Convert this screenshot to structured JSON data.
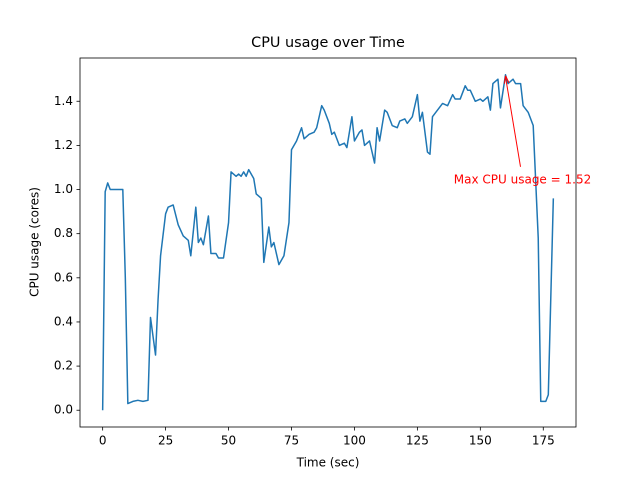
{
  "chart_data": {
    "type": "line",
    "title": "CPU usage over Time",
    "x_label": "Time (sec)",
    "y_label": "CPU usage (cores)",
    "x": [
      0,
      1,
      2,
      3,
      5,
      8,
      9,
      10,
      12,
      14,
      16,
      18,
      19,
      21,
      22,
      23,
      25,
      26,
      28,
      30,
      32,
      34,
      35,
      37,
      38,
      39,
      40,
      42,
      43,
      45,
      46,
      48,
      50,
      51,
      53,
      54,
      55,
      56,
      57,
      58,
      60,
      61,
      63,
      64,
      66,
      67,
      68,
      70,
      72,
      74,
      75,
      77,
      79,
      80,
      82,
      84,
      85,
      87,
      88,
      90,
      91,
      92,
      94,
      96,
      97,
      99,
      100,
      102,
      103,
      104,
      106,
      108,
      109,
      110,
      112,
      113,
      115,
      117,
      118,
      120,
      121,
      123,
      125,
      126,
      127,
      129,
      130,
      131,
      133,
      135,
      137,
      139,
      140,
      142,
      144,
      145,
      146,
      148,
      150,
      151,
      153,
      154,
      155,
      157,
      158,
      160,
      161,
      163,
      164,
      166,
      167,
      169,
      171,
      173,
      174,
      176,
      177,
      179
    ],
    "series": [
      {
        "name": "CPU usage",
        "color": "#1f77b4",
        "values": [
          0.0,
          0.99,
          1.03,
          1.0,
          1.0,
          1.0,
          0.6,
          0.03,
          0.04,
          0.045,
          0.04,
          0.045,
          0.42,
          0.25,
          0.5,
          0.7,
          0.89,
          0.92,
          0.93,
          0.84,
          0.79,
          0.77,
          0.7,
          0.92,
          0.76,
          0.78,
          0.75,
          0.88,
          0.71,
          0.71,
          0.69,
          0.69,
          0.85,
          1.08,
          1.06,
          1.07,
          1.06,
          1.08,
          1.06,
          1.09,
          1.05,
          0.98,
          0.96,
          0.67,
          0.83,
          0.74,
          0.76,
          0.66,
          0.7,
          0.85,
          1.18,
          1.22,
          1.28,
          1.23,
          1.25,
          1.26,
          1.28,
          1.38,
          1.36,
          1.3,
          1.25,
          1.26,
          1.2,
          1.21,
          1.19,
          1.33,
          1.22,
          1.26,
          1.27,
          1.2,
          1.22,
          1.12,
          1.28,
          1.22,
          1.36,
          1.35,
          1.29,
          1.28,
          1.31,
          1.32,
          1.3,
          1.33,
          1.43,
          1.31,
          1.35,
          1.17,
          1.16,
          1.33,
          1.36,
          1.39,
          1.38,
          1.43,
          1.41,
          1.41,
          1.47,
          1.45,
          1.45,
          1.4,
          1.41,
          1.4,
          1.42,
          1.36,
          1.48,
          1.5,
          1.37,
          1.52,
          1.48,
          1.5,
          1.48,
          1.48,
          1.38,
          1.35,
          1.29,
          0.78,
          0.04,
          0.04,
          0.07,
          0.96
        ]
      }
    ],
    "xlim": [
      -9,
      188
    ],
    "ylim": [
      -0.076,
      1.596
    ],
    "xticks": [
      0,
      25,
      50,
      75,
      100,
      125,
      150,
      175
    ],
    "yticks": [
      {
        "value": 0,
        "label": "0.0"
      },
      0.2,
      0.4,
      0.6,
      0.8,
      {
        "value": 1,
        "label": "1.0"
      },
      1.2,
      1.4
    ],
    "annotation": {
      "text": "Max CPU usage = 1.52",
      "color": "red"
    },
    "grid": false
  }
}
